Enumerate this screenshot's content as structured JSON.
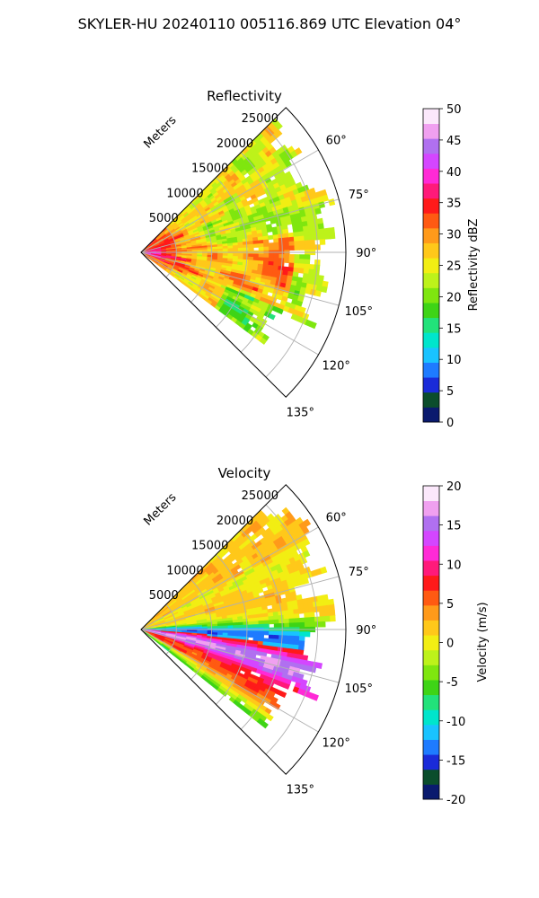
{
  "figure_title": "SKYLER-HU  20240110  005116.869 UTC Elevation 04°",
  "chart_data": [
    {
      "type": "heatmap",
      "title": "Reflectivity",
      "radial_label": "Meters",
      "radial_ticks": [
        "5000",
        "10000",
        "15000",
        "20000",
        "25000"
      ],
      "radial_tick_values": [
        5000,
        10000,
        15000,
        20000,
        25000
      ],
      "r_max": 29000,
      "azimuth_ticks": [
        "60°",
        "75°",
        "90°",
        "105°",
        "120°",
        "135°"
      ],
      "azimuth_tick_values": [
        60,
        75,
        90,
        105,
        120,
        135
      ],
      "azimuth_range": [
        45,
        135
      ],
      "colorbar_label": "Reflectivity dBZ",
      "colorbar_ticks": [
        "0",
        "5",
        "10",
        "15",
        "20",
        "25",
        "30",
        "35",
        "40",
        "45",
        "50"
      ],
      "clim": [
        0,
        50
      ],
      "colormap": [
        "#0a1a6e",
        "#0b4d2c",
        "#1a2bd9",
        "#1e7bff",
        "#19c3ff",
        "#00e5cc",
        "#22e27a",
        "#3ed416",
        "#7fe60f",
        "#bdf21a",
        "#f2ee13",
        "#ffc81a",
        "#ff9a1a",
        "#ff5a12",
        "#ff1a1a",
        "#ff1a7a",
        "#ff2ad6",
        "#d446ff",
        "#b070f0",
        "#f0a0f0",
        "#fbe8fb"
      ]
    },
    {
      "type": "heatmap",
      "title": "Velocity",
      "radial_label": "Meters",
      "radial_ticks": [
        "5000",
        "10000",
        "15000",
        "20000",
        "25000"
      ],
      "radial_tick_values": [
        5000,
        10000,
        15000,
        20000,
        25000
      ],
      "r_max": 29000,
      "azimuth_ticks": [
        "60°",
        "75°",
        "90°",
        "105°",
        "120°",
        "135°"
      ],
      "azimuth_tick_values": [
        60,
        75,
        90,
        105,
        120,
        135
      ],
      "azimuth_range": [
        45,
        135
      ],
      "colorbar_label": "Velocity (m/s)",
      "colorbar_ticks": [
        "-20",
        "-15",
        "-10",
        "-5",
        "0",
        "5",
        "10",
        "15",
        "20"
      ],
      "clim": [
        -20,
        20
      ],
      "colormap": [
        "#0a1a6e",
        "#0b4d2c",
        "#1a2bd9",
        "#1e7bff",
        "#19c3ff",
        "#00e5cc",
        "#22e27a",
        "#3ed416",
        "#7fe60f",
        "#bdf21a",
        "#f2ee13",
        "#ffc81a",
        "#ff9a1a",
        "#ff5a12",
        "#ff1a1a",
        "#ff1a7a",
        "#ff2ad6",
        "#d446ff",
        "#b070f0",
        "#f0a0f0",
        "#fbe8fb"
      ]
    }
  ]
}
